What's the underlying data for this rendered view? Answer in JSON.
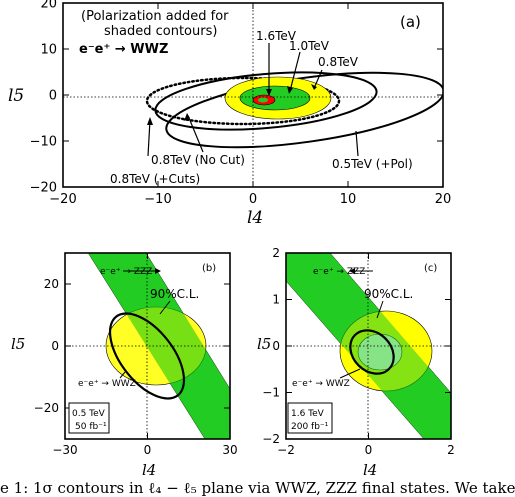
{
  "chart_data": [
    {
      "type": "contour",
      "panel_label": "(a)",
      "xlabel": "l4",
      "ylabel": "l5",
      "xlim": [
        -20,
        20
      ],
      "ylim": [
        -20,
        20
      ],
      "xticks": [
        "−20",
        "−10",
        "0",
        "10",
        "20"
      ],
      "yticks": [
        "20",
        "10",
        "0",
        "−10",
        "−20"
      ],
      "note_lines": [
        "(Polarization added for",
        "shaded contours)"
      ],
      "process": "e⁻e⁺ → WWZ",
      "annotations": [
        "1.6TeV",
        "1.0TeV",
        "0.8TeV",
        "0.8TeV (No Cut)",
        "0.8TeV (+Cuts)",
        "0.5TeV (+Pol)"
      ],
      "contours": [
        {
          "name": "0.5TeV (+Pol)",
          "style": "solid",
          "cx": 5.5,
          "cy": -1.5,
          "rx": 14.5,
          "ry": 7,
          "angle_deg": -10
        },
        {
          "name": "0.8TeV (No Cut)",
          "style": "solid",
          "cx": 1.5,
          "cy": -0.5,
          "rx": 11.5,
          "ry": 5.5,
          "angle_deg": -5
        },
        {
          "name": "0.8TeV (+Cuts)",
          "style": "dotted",
          "cx": -1,
          "cy": -0.5,
          "rx": 10,
          "ry": 4.5,
          "angle_deg": 0
        },
        {
          "name": "0.8TeV",
          "style": "filled",
          "fill": "#ffff00",
          "cx": 1.5,
          "cy": 0,
          "rx": 5.5,
          "ry": 3.8,
          "angle_deg": 0
        },
        {
          "name": "1.0TeV",
          "style": "filled",
          "fill": "#22cc22",
          "cx": 1.2,
          "cy": 0,
          "rx": 3.8,
          "ry": 2.3,
          "angle_deg": 0
        },
        {
          "name": "1.6TeV",
          "style": "filled",
          "fill": "#ff0000",
          "cx": 0.3,
          "cy": -0.3,
          "rx": 1.2,
          "ry": 0.9,
          "angle_deg": 0
        }
      ]
    },
    {
      "type": "contour",
      "panel_label": "(b)",
      "xlabel": "l4",
      "ylabel": "l5",
      "xlim": [
        -30,
        30
      ],
      "ylim": [
        -30,
        30
      ],
      "xticks": [
        "−30",
        "0",
        "30"
      ],
      "yticks": [
        "20",
        "0",
        "−20"
      ],
      "labels": [
        "e⁻e⁺ → ZZZ",
        "90%C.L.",
        "e⁻e⁺ → WWZ"
      ],
      "legend_box": [
        "0.5 TeV",
        "50 fb⁻¹"
      ],
      "band": {
        "name": "ZZZ",
        "fill": "#22cc22",
        "slope": -1.3,
        "halfwidth_y": 7
      },
      "contours": [
        {
          "name": "WWZ 1σ",
          "style": "filled",
          "fill": "#ffff00",
          "cx": 3,
          "cy": 0,
          "rx": 15,
          "ry": 11,
          "angle_deg": 0
        },
        {
          "name": "90%C.L.",
          "style": "solid-thick",
          "cx": 0,
          "cy": -2,
          "rx": 14,
          "ry": 8,
          "angle_deg": -55
        }
      ]
    },
    {
      "type": "contour",
      "panel_label": "(c)",
      "xlabel": "l4",
      "ylabel": "l5",
      "xlim": [
        -2,
        2
      ],
      "ylim": [
        -2,
        2
      ],
      "xticks": [
        "−2",
        "0",
        "2"
      ],
      "yticks": [
        "2",
        "1",
        "0",
        "−1",
        "−2"
      ],
      "labels": [
        "e⁻e⁺ → ZZZ",
        "90%C.L.",
        "e⁻e⁺ → WWZ"
      ],
      "legend_box": [
        "1.6 TeV",
        "200 fb⁻¹"
      ],
      "band": {
        "name": "ZZZ",
        "fill": "#22cc22",
        "slope": -1.1,
        "halfwidth_y": 0.35
      },
      "contours": [
        {
          "name": "WWZ outer",
          "style": "filled-ring",
          "fill": "#ffff00",
          "cx": 0.4,
          "cy": -0.1,
          "rx": 1.0,
          "ry": 0.85,
          "angle_deg": 0
        },
        {
          "name": "90%C.L.",
          "style": "solid-thick",
          "cx": 0.1,
          "cy": -0.1,
          "rx": 0.45,
          "ry": 0.45,
          "angle_deg": 0
        }
      ]
    }
  ],
  "caption": "e 1: 1σ contours in ℓ₄ − ℓ₅ plane via WWZ, ZZZ final states.  We take"
}
